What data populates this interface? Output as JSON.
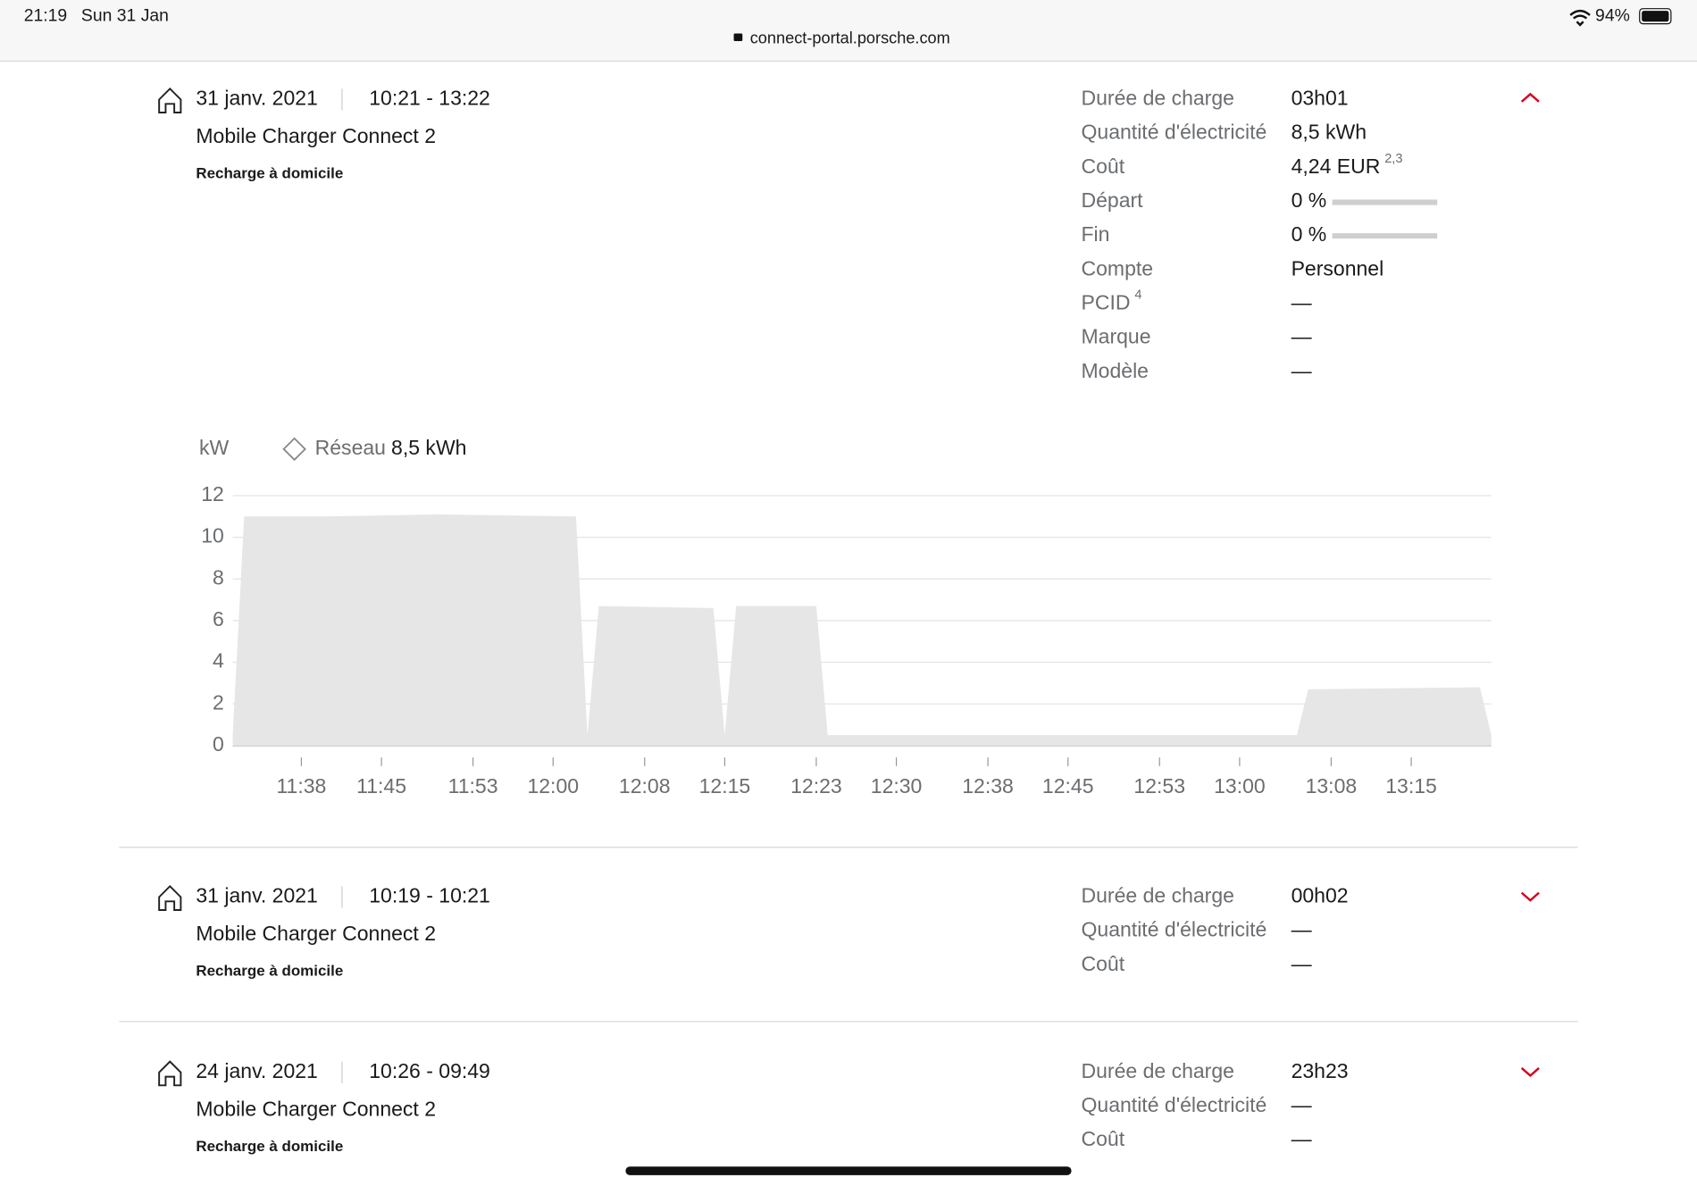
{
  "status_bar": {
    "time": "21:19",
    "date": "Sun 31 Jan",
    "battery": "94%"
  },
  "url": "connect-portal.porsche.com",
  "sessions": [
    {
      "date": "31 janv. 2021",
      "time_range": "10:21 - 13:22",
      "charger": "Mobile Charger Connect 2",
      "kind": "Recharge à domicile",
      "details": [
        {
          "label": "Durée de charge",
          "value": "03h01"
        },
        {
          "label": "Quantité d'électricité",
          "value": "8,5 kWh"
        },
        {
          "label": "Coût",
          "value": "4,24 EUR",
          "value_sup": "2,3"
        },
        {
          "label": "Départ",
          "value": "0 %"
        },
        {
          "label": "Fin",
          "value": "0 %"
        },
        {
          "label": "Compte",
          "value": "Personnel"
        },
        {
          "label": "PCID",
          "label_sup": "4",
          "value": "—"
        },
        {
          "label": "Marque",
          "value": "—"
        },
        {
          "label": "Modèle",
          "value": "—"
        }
      ]
    },
    {
      "date": "31 janv. 2021",
      "time_range": "10:19 - 10:21",
      "charger": "Mobile Charger Connect 2",
      "kind": "Recharge à domicile",
      "details": [
        {
          "label": "Durée de charge",
          "value": "00h02"
        },
        {
          "label": "Quantité d'électricité",
          "value": "—"
        },
        {
          "label": "Coût",
          "value": "—"
        }
      ]
    },
    {
      "date": "24 janv. 2021",
      "time_range": "10:26 - 09:49",
      "charger": "Mobile Charger Connect 2",
      "kind": "Recharge à domicile",
      "details": [
        {
          "label": "Durée de charge",
          "value": "23h23"
        },
        {
          "label": "Quantité d'électricité",
          "value": "—"
        },
        {
          "label": "Coût",
          "value": "—"
        }
      ]
    }
  ],
  "chart_data": {
    "type": "area",
    "y_unit": "kW",
    "legend_value": "8,5 kWh",
    "x": [
      "11:32",
      "11:33",
      "11:40",
      "11:50",
      "12:02",
      "12:03",
      "12:04",
      "12:14",
      "12:15",
      "12:16",
      "12:23",
      "12:24",
      "13:05",
      "13:06",
      "13:21",
      "13:22"
    ],
    "series": [
      {
        "name": "Réseau",
        "color": "#e6e6e6",
        "values": [
          0.5,
          11,
          11,
          11.1,
          11,
          0.5,
          6.7,
          6.6,
          0.5,
          6.7,
          6.7,
          0.5,
          0.5,
          2.7,
          2.8,
          0.5
        ]
      }
    ],
    "xlim": [
      "11:32",
      "13:22"
    ],
    "xticks": [
      "11:38",
      "11:45",
      "11:53",
      "12:00",
      "12:08",
      "12:15",
      "12:23",
      "12:30",
      "12:38",
      "12:45",
      "12:53",
      "13:00",
      "13:08",
      "13:15"
    ],
    "ylim": [
      0,
      12
    ],
    "yticks": [
      0,
      2,
      4,
      6,
      8,
      10,
      12
    ],
    "grid": true
  }
}
